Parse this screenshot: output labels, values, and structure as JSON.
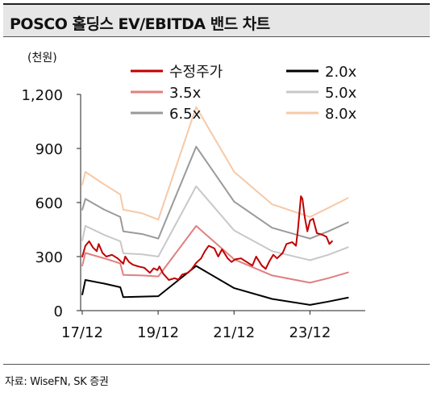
{
  "header": {
    "title": "POSCO 홀딩스 EV/EBITDA 밴드 차트"
  },
  "footer": {
    "source": "자료: WiseFN, SK 증권"
  },
  "chart_data": {
    "type": "line",
    "unit_label": "(천원)",
    "ylim": [
      0,
      1200
    ],
    "y_ticks": [
      0,
      300,
      600,
      900,
      1200
    ],
    "y_tick_labels": [
      "0",
      "300",
      "600",
      "900",
      "1,200"
    ],
    "x_range": [
      2017.875,
      2025.375
    ],
    "x_ticks": [
      2017.917,
      2019.917,
      2021.917,
      2023.917
    ],
    "x_tick_labels": [
      "17/12",
      "19/12",
      "21/12",
      "23/12"
    ],
    "grid": false,
    "legend_position": "top",
    "series": [
      {
        "name": "수정주가",
        "color": "#c00000",
        "width": 2,
        "points": [
          [
            2017.92,
            300
          ],
          [
            2018.0,
            360
          ],
          [
            2018.1,
            385
          ],
          [
            2018.2,
            350
          ],
          [
            2018.3,
            330
          ],
          [
            2018.35,
            370
          ],
          [
            2018.45,
            320
          ],
          [
            2018.55,
            300
          ],
          [
            2018.7,
            310
          ],
          [
            2018.85,
            290
          ],
          [
            2019.0,
            260
          ],
          [
            2019.05,
            300
          ],
          [
            2019.15,
            270
          ],
          [
            2019.25,
            255
          ],
          [
            2019.4,
            245
          ],
          [
            2019.55,
            238
          ],
          [
            2019.7,
            210
          ],
          [
            2019.8,
            235
          ],
          [
            2019.9,
            225
          ],
          [
            2019.95,
            245
          ],
          [
            2020.05,
            205
          ],
          [
            2020.2,
            170
          ],
          [
            2020.35,
            180
          ],
          [
            2020.45,
            172
          ],
          [
            2020.55,
            200
          ],
          [
            2020.7,
            210
          ],
          [
            2020.8,
            230
          ],
          [
            2020.92,
            265
          ],
          [
            2021.05,
            290
          ],
          [
            2021.15,
            330
          ],
          [
            2021.25,
            360
          ],
          [
            2021.4,
            345
          ],
          [
            2021.5,
            300
          ],
          [
            2021.6,
            340
          ],
          [
            2021.75,
            290
          ],
          [
            2021.85,
            270
          ],
          [
            2021.95,
            285
          ],
          [
            2022.1,
            290
          ],
          [
            2022.25,
            270
          ],
          [
            2022.4,
            250
          ],
          [
            2022.5,
            300
          ],
          [
            2022.65,
            250
          ],
          [
            2022.75,
            232
          ],
          [
            2022.85,
            275
          ],
          [
            2022.95,
            310
          ],
          [
            2023.05,
            290
          ],
          [
            2023.2,
            320
          ],
          [
            2023.3,
            370
          ],
          [
            2023.45,
            380
          ],
          [
            2023.55,
            360
          ],
          [
            2023.6,
            450
          ],
          [
            2023.68,
            635
          ],
          [
            2023.72,
            620
          ],
          [
            2023.78,
            520
          ],
          [
            2023.85,
            440
          ],
          [
            2023.92,
            500
          ],
          [
            2024.0,
            510
          ],
          [
            2024.1,
            430
          ],
          [
            2024.18,
            425
          ],
          [
            2024.25,
            420
          ],
          [
            2024.35,
            410
          ],
          [
            2024.43,
            370
          ],
          [
            2024.5,
            385
          ]
        ]
      },
      {
        "name": "2.0x",
        "color": "#000000",
        "width": 2,
        "points": [
          [
            2017.92,
            90
          ],
          [
            2018.0,
            170
          ],
          [
            2018.5,
            150
          ],
          [
            2018.92,
            130
          ],
          [
            2019.0,
            75
          ],
          [
            2019.5,
            78
          ],
          [
            2019.92,
            80
          ],
          [
            2020.92,
            248
          ],
          [
            2021.92,
            125
          ],
          [
            2022.92,
            65
          ],
          [
            2023.92,
            32
          ],
          [
            2024.4,
            50
          ],
          [
            2024.92,
            72
          ]
        ]
      },
      {
        "name": "3.5x",
        "color": "#e08080",
        "width": 2,
        "points": [
          [
            2017.92,
            250
          ],
          [
            2018.0,
            320
          ],
          [
            2018.5,
            290
          ],
          [
            2018.92,
            262
          ],
          [
            2019.0,
            198
          ],
          [
            2019.5,
            195
          ],
          [
            2019.92,
            190
          ],
          [
            2020.92,
            470
          ],
          [
            2021.92,
            285
          ],
          [
            2022.92,
            195
          ],
          [
            2023.92,
            155
          ],
          [
            2024.4,
            180
          ],
          [
            2024.92,
            212
          ]
        ]
      },
      {
        "name": "5.0x",
        "color": "#c8c8c8",
        "width": 2,
        "points": [
          [
            2017.92,
            390
          ],
          [
            2018.0,
            470
          ],
          [
            2018.5,
            420
          ],
          [
            2018.92,
            385
          ],
          [
            2019.0,
            318
          ],
          [
            2019.5,
            312
          ],
          [
            2019.92,
            300
          ],
          [
            2020.92,
            690
          ],
          [
            2021.92,
            445
          ],
          [
            2022.92,
            330
          ],
          [
            2023.92,
            280
          ],
          [
            2024.4,
            310
          ],
          [
            2024.92,
            352
          ]
        ]
      },
      {
        "name": "6.5x",
        "color": "#9a9a9a",
        "width": 2,
        "points": [
          [
            2017.92,
            560
          ],
          [
            2018.0,
            620
          ],
          [
            2018.5,
            560
          ],
          [
            2018.92,
            520
          ],
          [
            2019.0,
            440
          ],
          [
            2019.5,
            425
          ],
          [
            2019.92,
            400
          ],
          [
            2020.92,
            910
          ],
          [
            2021.92,
            605
          ],
          [
            2022.92,
            460
          ],
          [
            2023.92,
            400
          ],
          [
            2024.4,
            440
          ],
          [
            2024.92,
            490
          ]
        ]
      },
      {
        "name": "8.0x",
        "color": "#f5c9a8",
        "width": 2,
        "points": [
          [
            2017.92,
            700
          ],
          [
            2018.0,
            770
          ],
          [
            2018.5,
            700
          ],
          [
            2018.92,
            645
          ],
          [
            2019.0,
            560
          ],
          [
            2019.5,
            540
          ],
          [
            2019.92,
            505
          ],
          [
            2020.92,
            1130
          ],
          [
            2021.92,
            770
          ],
          [
            2022.92,
            590
          ],
          [
            2023.92,
            520
          ],
          [
            2024.4,
            570
          ],
          [
            2024.92,
            625
          ]
        ]
      }
    ]
  }
}
